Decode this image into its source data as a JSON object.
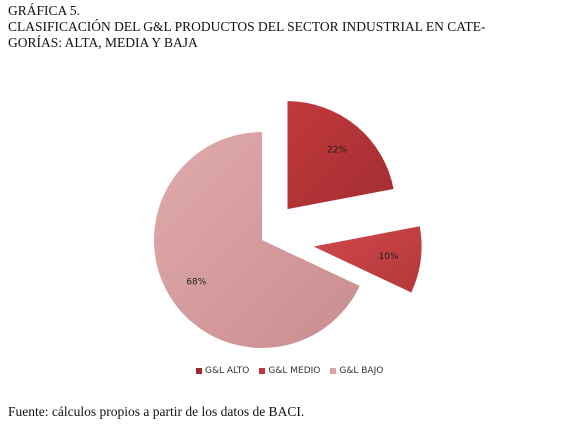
{
  "figure": {
    "number": "GRÁFICA 5.",
    "title_line1": "CLASIFICACIÓN DEL G&L PRODUCTOS DEL SECTOR INDUSTRIAL EN CATE-",
    "title_line2": "GORÍAS: ALTA, MEDIA Y BAJA",
    "source": "Fuente: cálculos propios a partir de los datos de BACI."
  },
  "chart_data": {
    "type": "pie",
    "categories": [
      "G&L ALTO",
      "G&L MEDIO",
      "G&L BAJO"
    ],
    "values": [
      22,
      10,
      68
    ],
    "labels": [
      "22%",
      "10%",
      "68%"
    ],
    "colors": [
      "#b7363a",
      "#c94043",
      "#d79fa0"
    ],
    "exploded": true,
    "legend_position": "bottom"
  }
}
